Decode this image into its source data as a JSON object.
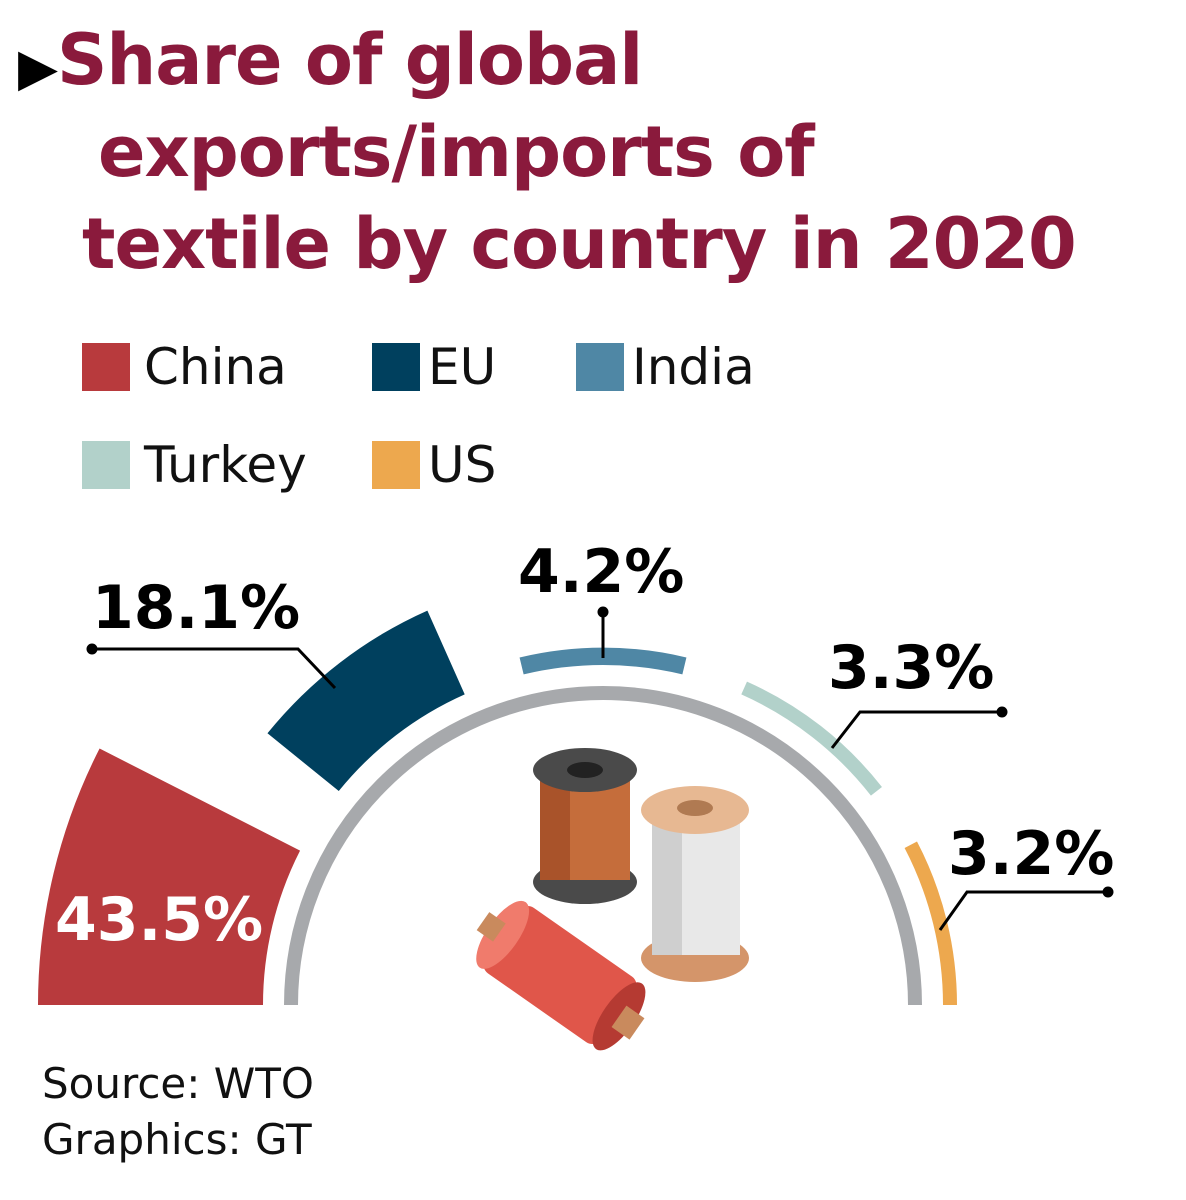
{
  "title": {
    "marker": "▶",
    "line1": "Share of global",
    "line2": "exports/imports of",
    "line3": "textile by country in 2020"
  },
  "chart_data": {
    "type": "radial-bar",
    "title": "Share of global exports/imports of textile by country in 2020",
    "unit": "%",
    "categories": [
      "China",
      "EU",
      "India",
      "Turkey",
      "US"
    ],
    "values": [
      43.5,
      18.1,
      4.2,
      3.3,
      3.2
    ],
    "labels": [
      "43.5%",
      "18.1%",
      "4.2%",
      "3.3%",
      "3.2%"
    ],
    "colors": [
      "#b83a3d",
      "#00405e",
      "#4f87a5",
      "#b2d1ca",
      "#eda84e"
    ],
    "legend_position": "top-left"
  },
  "legend": [
    {
      "label": "China",
      "color": "#b83a3d"
    },
    {
      "label": "EU",
      "color": "#00405e"
    },
    {
      "label": "India",
      "color": "#4f87a5"
    },
    {
      "label": "Turkey",
      "color": "#b2d1ca"
    },
    {
      "label": "US",
      "color": "#eda84e"
    }
  ],
  "footer": {
    "source": "Source: WTO",
    "graphics": "Graphics: GT"
  }
}
